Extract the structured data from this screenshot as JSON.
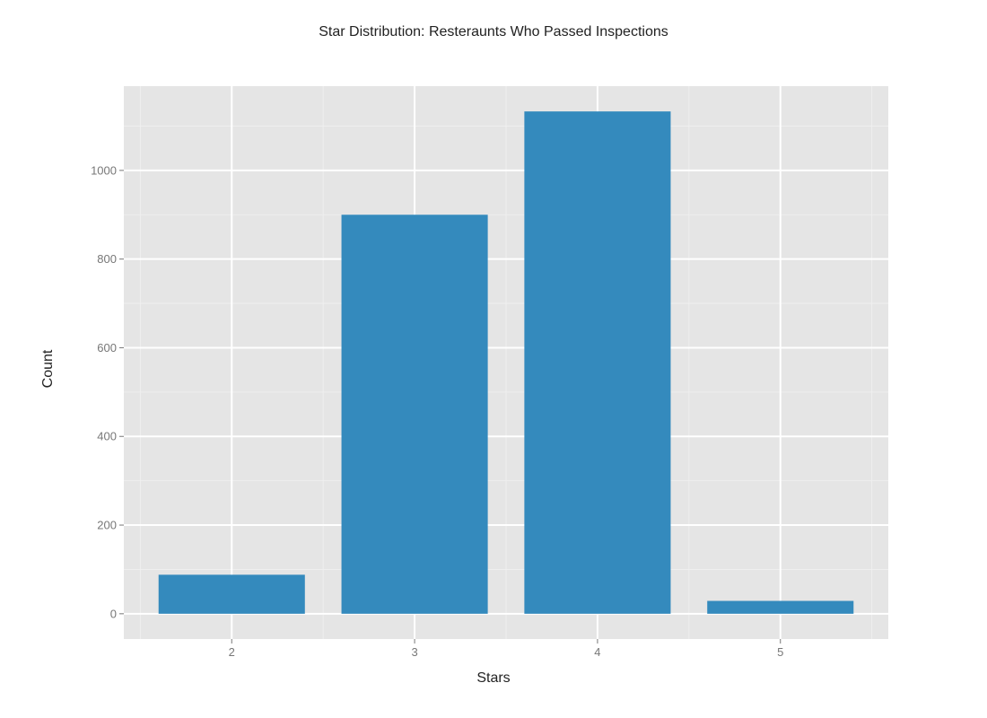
{
  "chart_data": {
    "type": "bar",
    "title": "Star Distribution: Resteraunts Who Passed Inspections",
    "xlabel": "Stars",
    "ylabel": "Count",
    "categories": [
      "2",
      "3",
      "4",
      "5"
    ],
    "values": [
      88,
      900,
      1133,
      29
    ],
    "y_ticks": [
      "0",
      "200",
      "400",
      "600",
      "800",
      "1000"
    ],
    "ylim": [
      -57,
      1190
    ],
    "grid": true,
    "bar_color": "#348abd",
    "panel_color": "#e5e5e5"
  }
}
